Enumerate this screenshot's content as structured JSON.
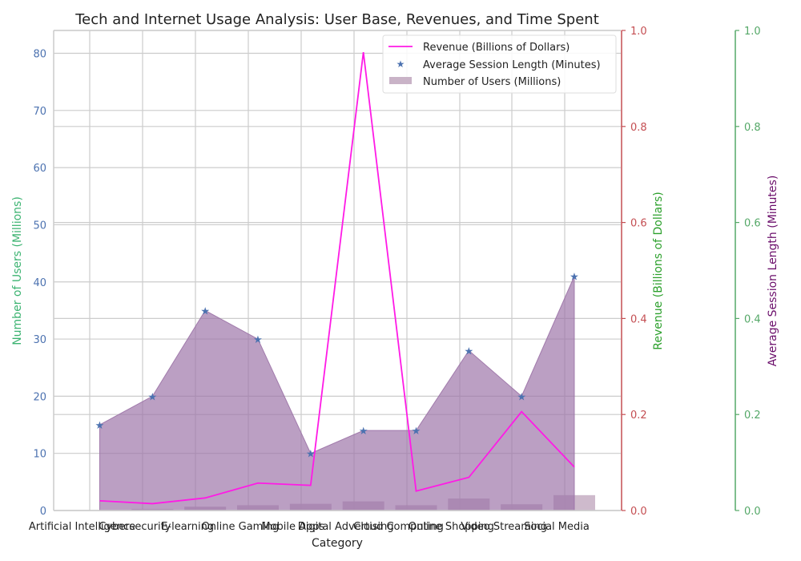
{
  "chart_data": {
    "type": "bar",
    "title": "Tech and Internet Usage Analysis: User Base, Revenues, and Time Spent",
    "xlabel": "Category",
    "categories": [
      "Artificial Intelligence",
      "Cybersecurity",
      "E-learning",
      "Online Gaming",
      "Mobile Apps",
      "Digital Advertising",
      "Cloud Computing",
      "Online Shopping",
      "Video Streaming",
      "Social Media"
    ],
    "axes": {
      "users": {
        "label": "Number of Users (Millions)",
        "ylim": [
          0,
          84
        ],
        "ticks": [
          0,
          10,
          20,
          30,
          40,
          50,
          60,
          70,
          80
        ],
        "label_color": "#3cb371",
        "tick_color": "#4c72b0"
      },
      "revenue": {
        "label": "Revenue (Billions of Dollars)",
        "ylim": [
          0,
          1.0
        ],
        "ticks": [
          0.0,
          0.2,
          0.4,
          0.6,
          0.8,
          1.0
        ],
        "label_color": "#2ca02c",
        "tick_color": "#c44e52",
        "spine_color": "#c44e52"
      },
      "session": {
        "label": "Average Session Length (Minutes)",
        "ylim": [
          0,
          1.0
        ],
        "ticks": [
          0.0,
          0.2,
          0.4,
          0.6,
          0.8,
          1.0
        ],
        "label_color": "#6a0d6a",
        "tick_color": "#55a868",
        "spine_color": "#55a868"
      }
    },
    "series": [
      {
        "name": "Number of Users (Millions)",
        "type": "bar",
        "axis": "revenue",
        "values": [
          0.0,
          0.003,
          0.008,
          0.011,
          0.014,
          0.019,
          0.011,
          0.025,
          0.013,
          0.032
        ],
        "color": "#c9b3c7"
      },
      {
        "name": "Average Session Length (Minutes)",
        "type": "scatter+area",
        "axis": "users",
        "values": [
          15,
          20,
          35,
          30,
          10,
          14,
          14,
          28,
          20,
          41
        ],
        "color": "#4c72b0",
        "fill": "#9b72a6"
      },
      {
        "name": "Revenue (Billions of Dollars)",
        "type": "line",
        "axis": "users",
        "values": [
          1.7,
          1.2,
          2.2,
          4.8,
          4.4,
          80.2,
          3.4,
          5.8,
          17.3,
          7.6
        ],
        "color": "#ff1ae6"
      }
    ],
    "legend": "top-right",
    "grid": true
  }
}
